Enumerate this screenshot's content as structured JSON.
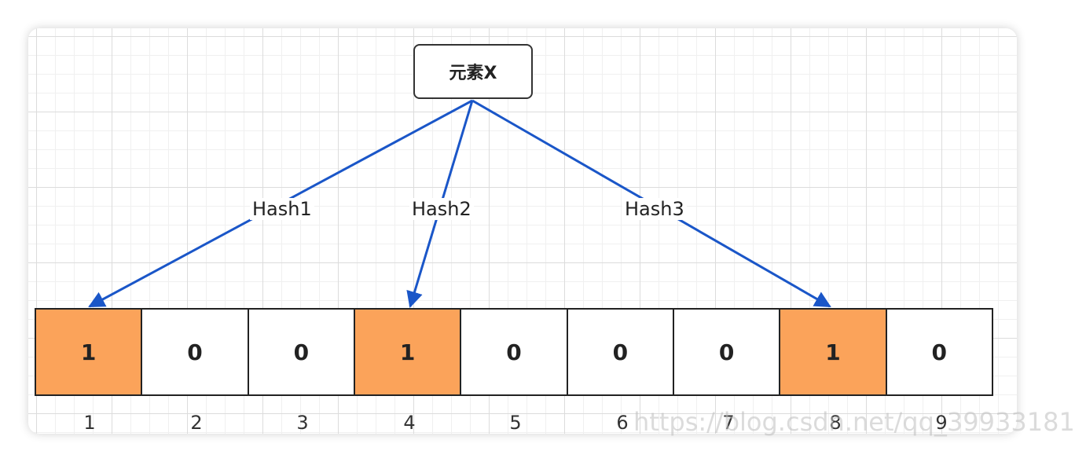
{
  "node": {
    "label": "元素X"
  },
  "edges": [
    {
      "label": "Hash1",
      "target_index": 1
    },
    {
      "label": "Hash2",
      "target_index": 4
    },
    {
      "label": "Hash3",
      "target_index": 8
    }
  ],
  "bit_array": {
    "cells": [
      "1",
      "0",
      "0",
      "1",
      "0",
      "0",
      "0",
      "1",
      "0"
    ],
    "indices": [
      "1",
      "2",
      "3",
      "4",
      "5",
      "6",
      "7",
      "8",
      "9"
    ]
  },
  "colors": {
    "set_bit": "#fba35a",
    "arrow": "#1a56c8",
    "border": "#222222"
  },
  "watermark": "https://blog.csdn.net/qq_39933181"
}
